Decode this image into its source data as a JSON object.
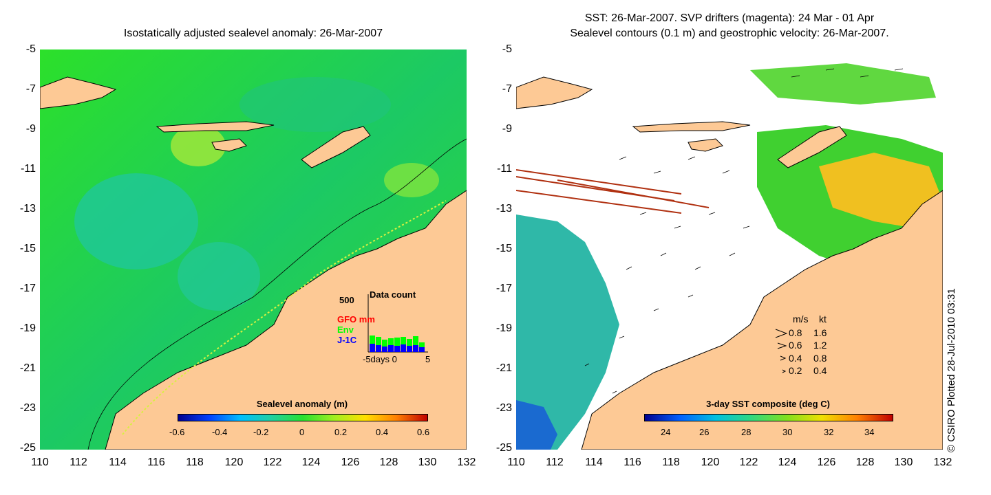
{
  "left_panel": {
    "title": "Isostatically adjusted sealevel anomaly: 26-Mar-2007",
    "y_ticks": [
      "-5",
      "-7",
      "-9",
      "-11",
      "-13",
      "-15",
      "-17",
      "-19",
      "-21",
      "-23",
      "-25"
    ],
    "x_ticks": [
      "110",
      "112",
      "114",
      "116",
      "118",
      "120",
      "122",
      "124",
      "126",
      "128",
      "130",
      "132"
    ],
    "colorbar_title": "Sealevel anomaly (m)",
    "colorbar_ticks": [
      "-0.6",
      "-0.4",
      "-0.2",
      "0",
      "0.2",
      "0.4",
      "0.6"
    ],
    "inset": {
      "max_label": "500",
      "title": "Data count",
      "legend": [
        {
          "label": "GFO mm",
          "color": "#ff0000"
        },
        {
          "label": "Env",
          "color": "#00ff00"
        },
        {
          "label": "J-1C",
          "color": "#0000ff"
        }
      ],
      "xlabel": "-5days 0",
      "xend": "5"
    }
  },
  "right_panel": {
    "title_line1": "SST: 26-Mar-2007. SVP drifters (magenta): 24 Mar - 01 Apr",
    "title_line2": "Sealevel contours (0.1 m) and geostrophic velocity: 26-Mar-2007.",
    "y_ticks": [
      "-5",
      "-7",
      "-9",
      "-11",
      "-13",
      "-15",
      "-17",
      "-19",
      "-21",
      "-23",
      "-25"
    ],
    "x_ticks": [
      "110",
      "112",
      "114",
      "116",
      "118",
      "120",
      "122",
      "124",
      "126",
      "128",
      "130",
      "132"
    ],
    "colorbar_title": "3-day SST composite (deg C)",
    "colorbar_ticks": [
      "24",
      "26",
      "28",
      "30",
      "32",
      "34"
    ],
    "speed_legend": {
      "header_ms": "m/s",
      "header_kt": "kt",
      "rows": [
        {
          "ms": "0.8",
          "kt": "1.6"
        },
        {
          "ms": "0.6",
          "kt": "1.2"
        },
        {
          "ms": "0.4",
          "kt": "0.8"
        },
        {
          "ms": "0.2",
          "kt": "0.4"
        }
      ]
    }
  },
  "credit": "© CSIRO Plotted 28-Jul-2010 03:31",
  "colors": {
    "land": "#fdc995",
    "ocean_green": "#1ed81e",
    "sst_blue": "#1aa0c8"
  }
}
